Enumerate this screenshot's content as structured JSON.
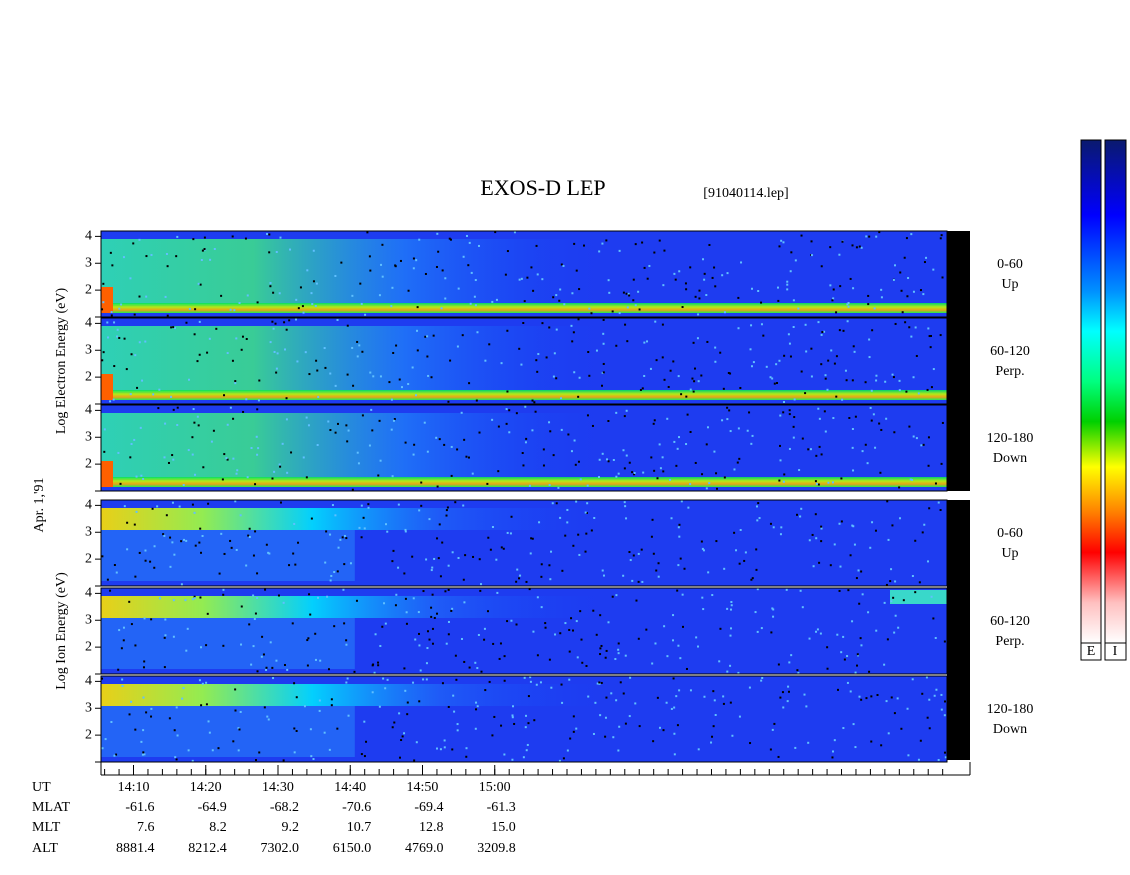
{
  "chart_data": {
    "type": "spectrogram",
    "title": "EXOS-D LEP",
    "file": "[91040114.lep]",
    "date_label": "Apr. 1,'91",
    "ylim": [
      1,
      4.2
    ],
    "yticks": [
      {
        "value": 1,
        "label": null
      },
      2,
      3,
      4
    ],
    "groups": [
      {
        "ylabel": "Log Electron Energy (eV)",
        "species": "electron",
        "panels": [
          {
            "lines": [
              "0-60",
              "Up"
            ]
          },
          {
            "lines": [
              "60-120",
              "Perp."
            ]
          },
          {
            "lines": [
              "120-180",
              "Down"
            ]
          }
        ]
      },
      {
        "ylabel": "Log Ion Energy (eV)",
        "species": "ion",
        "panels": [
          {
            "lines": [
              "0-60",
              "Up"
            ]
          },
          {
            "lines": [
              "60-120",
              "Perp."
            ]
          },
          {
            "lines": [
              "120-180",
              "Down"
            ]
          }
        ]
      }
    ],
    "time_axis": {
      "name": "UT",
      "xlim": [
        845.5,
        962.6
      ],
      "minor_step": 2,
      "xticks": [
        {
          "value": 850,
          "label": "14:10"
        },
        {
          "value": 860,
          "label": "14:20"
        },
        {
          "value": 870,
          "label": "14:30"
        },
        {
          "value": 880,
          "label": "14:40"
        },
        {
          "value": 890,
          "label": "14:50"
        },
        {
          "value": 900,
          "label": "15:00"
        }
      ]
    },
    "rows": [
      {
        "name": "MLAT",
        "values": [
          "-61.6",
          "-64.9",
          "-68.2",
          "-70.6",
          "-69.4",
          "-61.3"
        ]
      },
      {
        "name": "MLT",
        "values": [
          "7.6",
          "8.2",
          "9.2",
          "10.7",
          "12.8",
          "15.0"
        ]
      },
      {
        "name": "ALT",
        "values": [
          "8881.4",
          "8212.4",
          "7302.0",
          "6150.0",
          "4769.0",
          "3209.8"
        ]
      }
    ],
    "colorbars": [
      {
        "label": "E"
      },
      {
        "label": "I"
      }
    ]
  }
}
